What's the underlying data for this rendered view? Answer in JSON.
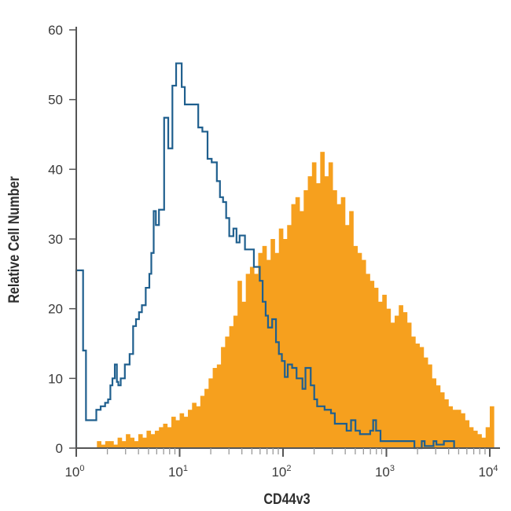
{
  "chart_data": {
    "type": "histogram",
    "title": "",
    "xlabel": "CD44v3",
    "ylabel": "Relative Cell Number",
    "xscale": "log",
    "xlim_log10": [
      0,
      4.03
    ],
    "ylim": [
      0,
      60
    ],
    "yticks": [
      0,
      10,
      20,
      30,
      40,
      50,
      60
    ],
    "xticks": [
      {
        "base": "10",
        "exp": "0",
        "log": 0
      },
      {
        "base": "10",
        "exp": "1",
        "log": 1
      },
      {
        "base": "10",
        "exp": "2",
        "log": 2
      },
      {
        "base": "10",
        "exp": "3",
        "log": 3
      },
      {
        "base": "10",
        "exp": "4",
        "log": 4
      }
    ],
    "grid": false,
    "colors": {
      "control": "#1f5f8e",
      "stained": "#f6a01e",
      "axis": "#555555",
      "minor_tick": "#9a9a9a"
    },
    "series": [
      {
        "name": "stained",
        "style": "filled",
        "bin_start_log10": 0.2,
        "bin_width_log10": 0.04,
        "values": [
          1,
          0.5,
          1,
          1,
          0.5,
          1.5,
          1,
          2,
          1.5,
          1,
          2,
          1.5,
          2.5,
          2,
          2.5,
          3,
          3.5,
          3,
          4.5,
          4,
          5,
          4.5,
          5.5,
          6.5,
          6,
          7.5,
          8.5,
          10,
          11.5,
          12,
          14.5,
          16,
          17.5,
          19,
          24,
          21,
          25,
          26,
          25,
          28,
          29,
          27,
          30,
          28,
          31.5,
          30,
          32,
          35,
          36,
          34,
          37,
          39,
          41,
          38,
          42.5,
          39,
          41,
          37,
          35,
          36,
          32,
          34,
          29,
          28,
          27,
          25,
          24,
          23,
          21,
          22,
          20,
          18,
          19,
          20.5,
          19.5,
          18,
          16,
          15,
          14.5,
          13,
          12,
          10,
          9,
          8,
          7,
          6,
          5.5,
          5.5,
          5,
          4,
          3,
          2.5,
          2,
          1.5,
          3,
          6
        ]
      },
      {
        "name": "control",
        "style": "outline",
        "steps_log10": [
          [
            0,
            25.5
          ],
          [
            0.066,
            14
          ],
          [
            0.094,
            4
          ],
          [
            0.194,
            5.5
          ],
          [
            0.236,
            6
          ],
          [
            0.279,
            6.5
          ],
          [
            0.308,
            7
          ],
          [
            0.33,
            9
          ],
          [
            0.35,
            10
          ],
          [
            0.373,
            12
          ],
          [
            0.393,
            9.5
          ],
          [
            0.407,
            9
          ],
          [
            0.43,
            10
          ],
          [
            0.47,
            12
          ],
          [
            0.516,
            13.5
          ],
          [
            0.55,
            17.5
          ],
          [
            0.578,
            18.5
          ],
          [
            0.607,
            19.5
          ],
          [
            0.635,
            20.5
          ],
          [
            0.672,
            23
          ],
          [
            0.707,
            25
          ],
          [
            0.726,
            28
          ],
          [
            0.749,
            34
          ],
          [
            0.77,
            32
          ],
          [
            0.8,
            34.2
          ],
          [
            0.85,
            47.4
          ],
          [
            0.89,
            43
          ],
          [
            0.93,
            52
          ],
          [
            0.966,
            55.2
          ],
          [
            1.02,
            51.8
          ],
          [
            1.05,
            49.3
          ],
          [
            1.18,
            46
          ],
          [
            1.22,
            45.4
          ],
          [
            1.27,
            41.5
          ],
          [
            1.31,
            41
          ],
          [
            1.36,
            38.3
          ],
          [
            1.39,
            36
          ],
          [
            1.42,
            35.3
          ],
          [
            1.45,
            33
          ],
          [
            1.48,
            30.4
          ],
          [
            1.52,
            31.5
          ],
          [
            1.55,
            29.5
          ],
          [
            1.58,
            30.5
          ],
          [
            1.632,
            28.5
          ],
          [
            1.718,
            26
          ],
          [
            1.775,
            24
          ],
          [
            1.803,
            21
          ],
          [
            1.832,
            19
          ],
          [
            1.855,
            17.3
          ],
          [
            1.895,
            18.5
          ],
          [
            1.932,
            15.2
          ],
          [
            1.96,
            13.5
          ],
          [
            1.989,
            12.5
          ],
          [
            2.017,
            10.2
          ],
          [
            2.046,
            12
          ],
          [
            2.088,
            11.5
          ],
          [
            2.131,
            10
          ],
          [
            2.188,
            8.5
          ],
          [
            2.217,
            11.5
          ],
          [
            2.268,
            9
          ],
          [
            2.302,
            7
          ],
          [
            2.33,
            6
          ],
          [
            2.402,
            5.5
          ],
          [
            2.464,
            5
          ],
          [
            2.501,
            3.5
          ],
          [
            2.615,
            2.5
          ],
          [
            2.658,
            4
          ],
          [
            2.701,
            2.5
          ],
          [
            2.744,
            2
          ],
          [
            2.843,
            2.5
          ],
          [
            2.872,
            4
          ],
          [
            2.9,
            2.5
          ],
          [
            2.943,
            1
          ],
          [
            3.271,
            0
          ],
          [
            3.342,
            1
          ],
          [
            3.37,
            0.3
          ],
          [
            3.456,
            1
          ],
          [
            3.484,
            0.5
          ],
          [
            3.556,
            1
          ],
          [
            3.655,
            0
          ]
        ]
      }
    ]
  }
}
